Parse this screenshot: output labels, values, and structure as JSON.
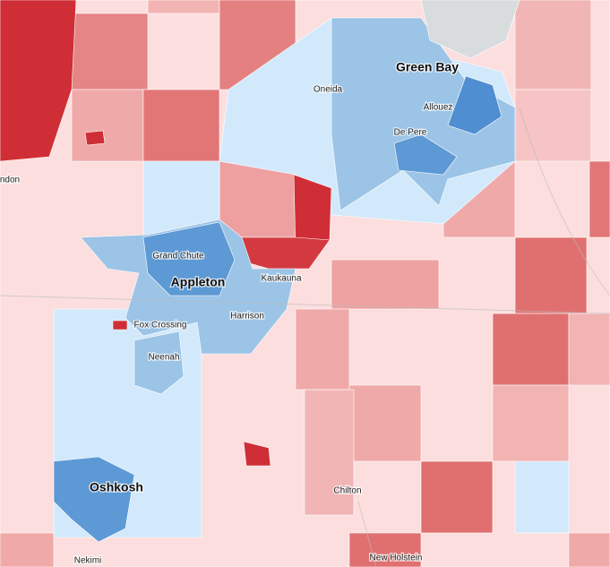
{
  "labels": [
    "Green Bay",
    "Oneida",
    "Allouez",
    "De Pere",
    "ndon",
    "Grand Chute",
    "Appleton",
    "Kaukauna",
    "Fox Crossing",
    "Harrison",
    "Neenah",
    "Oshkosh",
    "Chilton",
    "Nekimi",
    "New Holstein"
  ]
}
